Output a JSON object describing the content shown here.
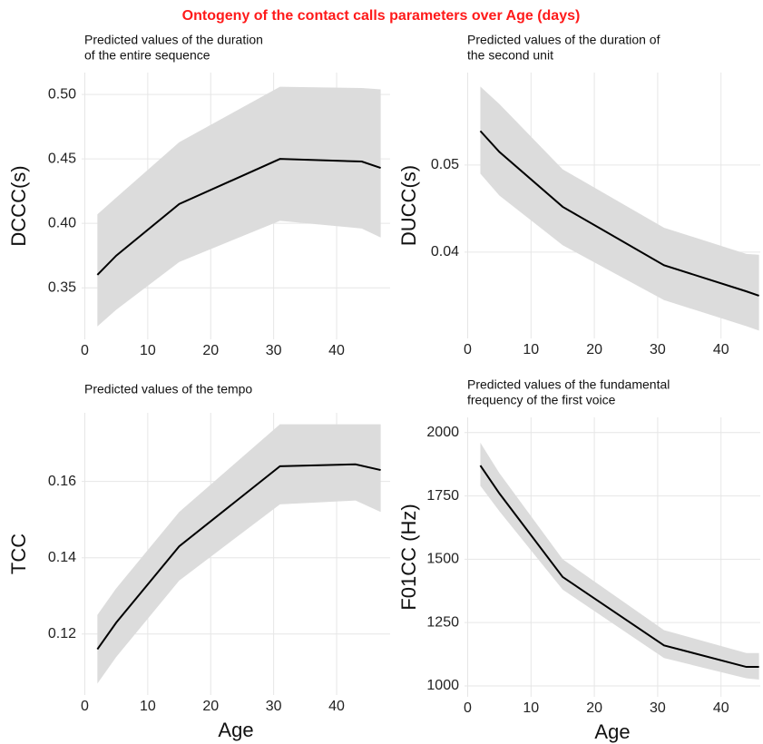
{
  "title": "Ontogeny of the contact calls parameters over Age (days)",
  "chart_data": [
    {
      "type": "line",
      "title": [
        "Predicted values of the duration",
        "of the entire sequence"
      ],
      "ylabel": "DCCC(s)",
      "x": [
        2,
        5,
        15,
        31,
        44,
        47
      ],
      "series": [
        {
          "color": "#000000",
          "band_color": "#dcdcdc",
          "values": [
            0.36,
            0.375,
            0.415,
            0.45,
            0.448,
            0.443
          ],
          "lower": [
            0.32,
            0.333,
            0.37,
            0.402,
            0.396,
            0.389
          ],
          "upper": [
            0.407,
            0.42,
            0.463,
            0.506,
            0.505,
            0.504
          ]
        }
      ],
      "xlim": [
        -0.5,
        48.5
      ],
      "xticks": [
        0,
        10,
        20,
        30,
        40
      ],
      "ylim": [
        0.31,
        0.517
      ],
      "yticks": [
        0.35,
        {
          "value": 0.4,
          "label": "0.40"
        },
        0.45,
        {
          "value": 0.5,
          "label": "0.50"
        }
      ],
      "grid": true
    },
    {
      "type": "line",
      "title": [
        "Predicted values of the duration of",
        "the second unit"
      ],
      "ylabel": "DUCC(s)",
      "x": [
        2,
        5,
        15,
        31,
        44,
        46
      ],
      "series": [
        {
          "color": "#000000",
          "band_color": "#dcdcdc",
          "values": [
            0.0539,
            0.0515,
            0.0452,
            0.0385,
            0.0355,
            0.035
          ],
          "lower": [
            0.049,
            0.0465,
            0.0408,
            0.0345,
            0.0315,
            0.031
          ],
          "upper": [
            0.059,
            0.057,
            0.0495,
            0.0428,
            0.0398,
            0.0397
          ]
        }
      ],
      "xlim": [
        -0.5,
        46.2
      ],
      "xticks": [
        0,
        10,
        20,
        30,
        40
      ],
      "ylim": [
        0.0301,
        0.0606
      ],
      "yticks": [
        0.04,
        0.05
      ],
      "grid": true
    },
    {
      "type": "line",
      "title": [
        "Predicted values of the tempo"
      ],
      "ylabel": "TCC",
      "xlabel": "Age",
      "x": [
        2,
        5,
        15,
        31,
        43,
        47
      ],
      "series": [
        {
          "color": "#000000",
          "band_color": "#dcdcdc",
          "values": [
            0.116,
            0.123,
            0.143,
            0.164,
            0.1645,
            0.163
          ],
          "lower": [
            0.107,
            0.114,
            0.134,
            0.154,
            0.155,
            0.152
          ],
          "upper": [
            0.125,
            0.132,
            0.152,
            0.175,
            0.175,
            0.175
          ]
        }
      ],
      "xlim": [
        -0.5,
        48.5
      ],
      "xticks": [
        0,
        10,
        20,
        30,
        40
      ],
      "ylim": [
        0.104,
        0.178
      ],
      "yticks": [
        0.12,
        0.14,
        0.16
      ],
      "grid": true
    },
    {
      "type": "line",
      "title": [
        "Predicted values of the fundamental",
        "frequency of the first voice"
      ],
      "ylabel": "F01CC (Hz)",
      "xlabel": "Age",
      "x": [
        2,
        5,
        15,
        31,
        44,
        46
      ],
      "series": [
        {
          "color": "#000000",
          "band_color": "#dcdcdc",
          "values": [
            1870,
            1760,
            1430,
            1160,
            1075,
            1075
          ],
          "lower": [
            1790,
            1690,
            1380,
            1110,
            1030,
            1025
          ],
          "upper": [
            1960,
            1840,
            1500,
            1220,
            1130,
            1130
          ]
        }
      ],
      "xlim": [
        -0.5,
        46.2
      ],
      "xticks": [
        0,
        10,
        20,
        30,
        40
      ],
      "ylim": [
        957,
        2060
      ],
      "yticks": [
        1000,
        1250,
        1500,
        1750,
        2000
      ],
      "grid": true
    }
  ]
}
